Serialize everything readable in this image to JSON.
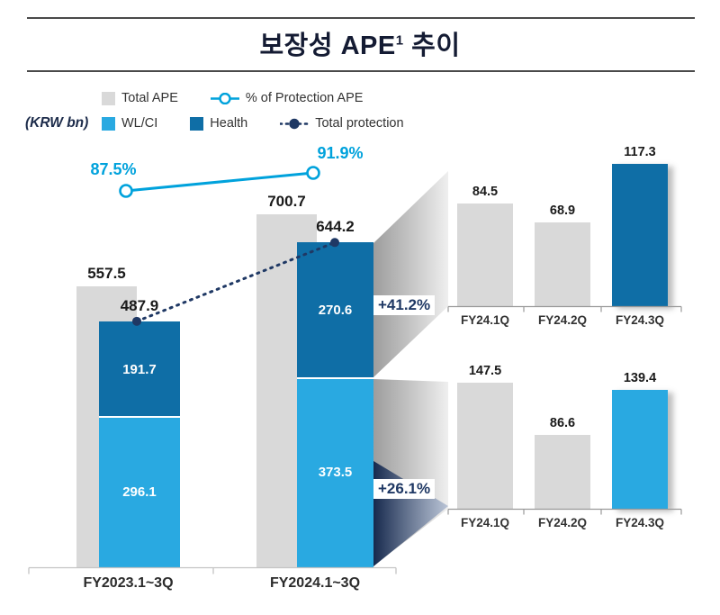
{
  "title": {
    "text_main": "보장성 APE",
    "superscript": "1",
    "text_tail": " 추이"
  },
  "unit_label": "(KRW bn)",
  "legend": {
    "total_ape": "Total APE",
    "pct_protection": "% of Protection APE",
    "wl_ci": "WL/CI",
    "health": "Health",
    "total_protection": "Total protection"
  },
  "colors": {
    "total_ape": "#d9d9d9",
    "wl_ci": "#29a9e1",
    "health": "#0f6ea6",
    "total_protection": "#1f3864",
    "pct_line": "#00a2dc"
  },
  "chart_data": [
    {
      "id": "main-annual",
      "type": "bar",
      "categories": [
        "FY2023.1~3Q",
        "FY2024.1~3Q"
      ],
      "series": [
        {
          "name": "Total APE",
          "values": [
            557.5,
            700.7
          ]
        },
        {
          "name": "WL/CI",
          "values": [
            296.1,
            373.5
          ]
        },
        {
          "name": "Health",
          "values": [
            191.7,
            270.6
          ]
        },
        {
          "name": "Total protection",
          "values": [
            487.9,
            644.2
          ]
        },
        {
          "name": "% of Protection APE",
          "values": [
            87.5,
            91.9
          ],
          "unit": "%"
        }
      ],
      "title": "보장성 APE 추이",
      "ylabel": "KRW bn",
      "legend_position": "top",
      "grid": false
    },
    {
      "id": "health-quarterly",
      "type": "bar",
      "categories": [
        "FY24.1Q",
        "FY24.2Q",
        "FY24.3Q"
      ],
      "values": [
        84.5,
        68.9,
        117.3
      ],
      "delta_label": "+41.2%",
      "highlight_index": 2,
      "highlight_series": "Health"
    },
    {
      "id": "wlci-quarterly",
      "type": "bar",
      "categories": [
        "FY24.1Q",
        "FY24.2Q",
        "FY24.3Q"
      ],
      "values": [
        147.5,
        86.6,
        139.4
      ],
      "delta_label": "+26.1%",
      "highlight_index": 2,
      "highlight_series": "WL/CI"
    }
  ]
}
